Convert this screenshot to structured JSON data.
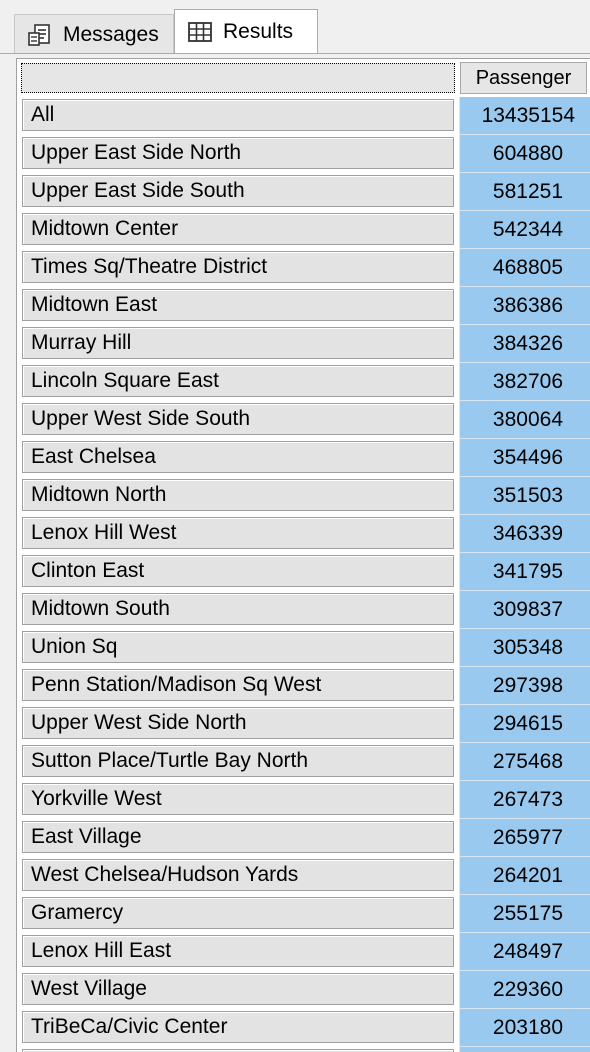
{
  "tabs": {
    "messages": {
      "label": "Messages",
      "icon": "messages-icon"
    },
    "results": {
      "label": "Results",
      "icon": "grid-icon"
    }
  },
  "grid": {
    "column_header": "Passenger",
    "rows": [
      {
        "name": "All",
        "value": "13435154"
      },
      {
        "name": "Upper East Side North",
        "value": "604880"
      },
      {
        "name": "Upper East Side South",
        "value": "581251"
      },
      {
        "name": "Midtown Center",
        "value": "542344"
      },
      {
        "name": "Times Sq/Theatre District",
        "value": "468805"
      },
      {
        "name": "Midtown East",
        "value": "386386"
      },
      {
        "name": "Murray Hill",
        "value": "384326"
      },
      {
        "name": "Lincoln Square East",
        "value": "382706"
      },
      {
        "name": "Upper West Side South",
        "value": "380064"
      },
      {
        "name": "East Chelsea",
        "value": "354496"
      },
      {
        "name": "Midtown North",
        "value": "351503"
      },
      {
        "name": "Lenox Hill West",
        "value": "346339"
      },
      {
        "name": "Clinton East",
        "value": "341795"
      },
      {
        "name": "Midtown South",
        "value": "309837"
      },
      {
        "name": "Union Sq",
        "value": "305348"
      },
      {
        "name": "Penn Station/Madison Sq West",
        "value": "297398"
      },
      {
        "name": "Upper West Side North",
        "value": "294615"
      },
      {
        "name": "Sutton Place/Turtle Bay North",
        "value": "275468"
      },
      {
        "name": "Yorkville West",
        "value": "267473"
      },
      {
        "name": "East Village",
        "value": "265977"
      },
      {
        "name": "West Chelsea/Hudson Yards",
        "value": "264201"
      },
      {
        "name": "Gramercy",
        "value": "255175"
      },
      {
        "name": "Lenox Hill East",
        "value": "248497"
      },
      {
        "name": "West Village",
        "value": "229360"
      },
      {
        "name": "TriBeCa/Civic Center",
        "value": "203180"
      }
    ]
  },
  "colors": {
    "selection": "#99c9ef",
    "header_bg": "#e6e6e6",
    "background": "#f0f0f0"
  }
}
